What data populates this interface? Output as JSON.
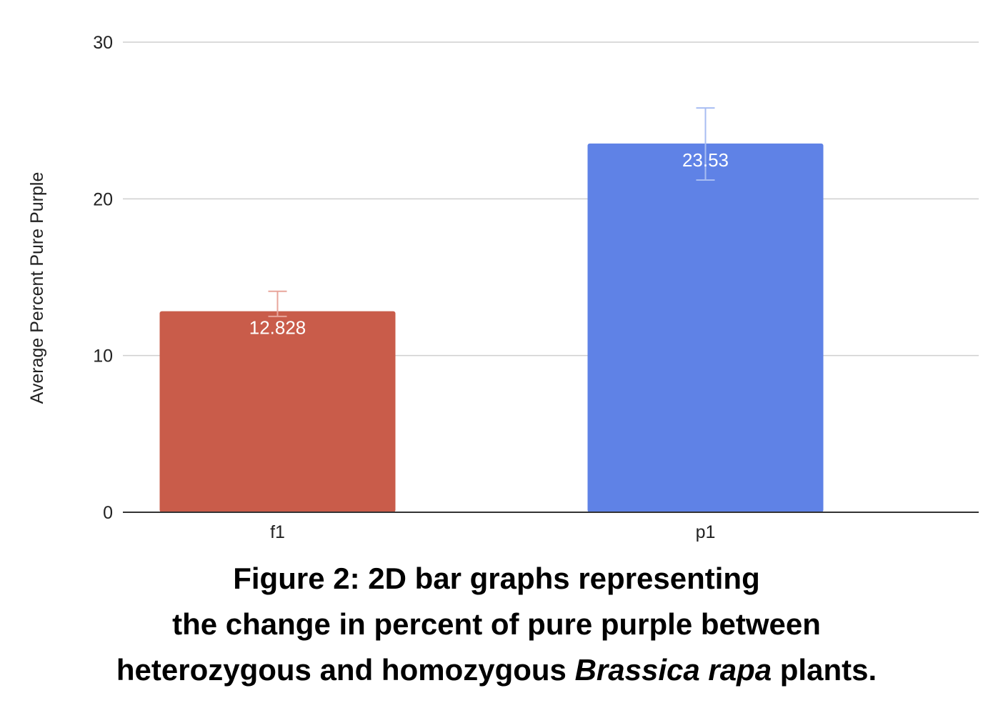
{
  "chart_data": {
    "type": "bar",
    "categories": [
      "f1",
      "p1"
    ],
    "values": [
      12.828,
      23.53
    ],
    "value_labels": [
      "12.828",
      "23.53"
    ],
    "error_bars": [
      {
        "low": 12.5,
        "high": 14.1
      },
      {
        "low": 21.2,
        "high": 25.8
      }
    ],
    "bar_colors": [
      "#c95c4a",
      "#5f82e6"
    ],
    "error_bar_colors": [
      "#e8a59b",
      "#a8bdf2"
    ],
    "ylabel": "Average Percent Pure Purple",
    "ylim": [
      0,
      30
    ],
    "yticks": [
      0,
      10,
      20,
      30
    ],
    "ytick_labels": [
      "0",
      "10",
      "20",
      "30"
    ],
    "grid": true,
    "legend": "none"
  },
  "caption": {
    "line1": "Figure 2: 2D bar graphs representing",
    "line2": "the change in percent of pure purple between",
    "line3_before": "heterozygous and homozygous ",
    "line3_italic": "Brassica rapa",
    "line3_after": " plants."
  }
}
